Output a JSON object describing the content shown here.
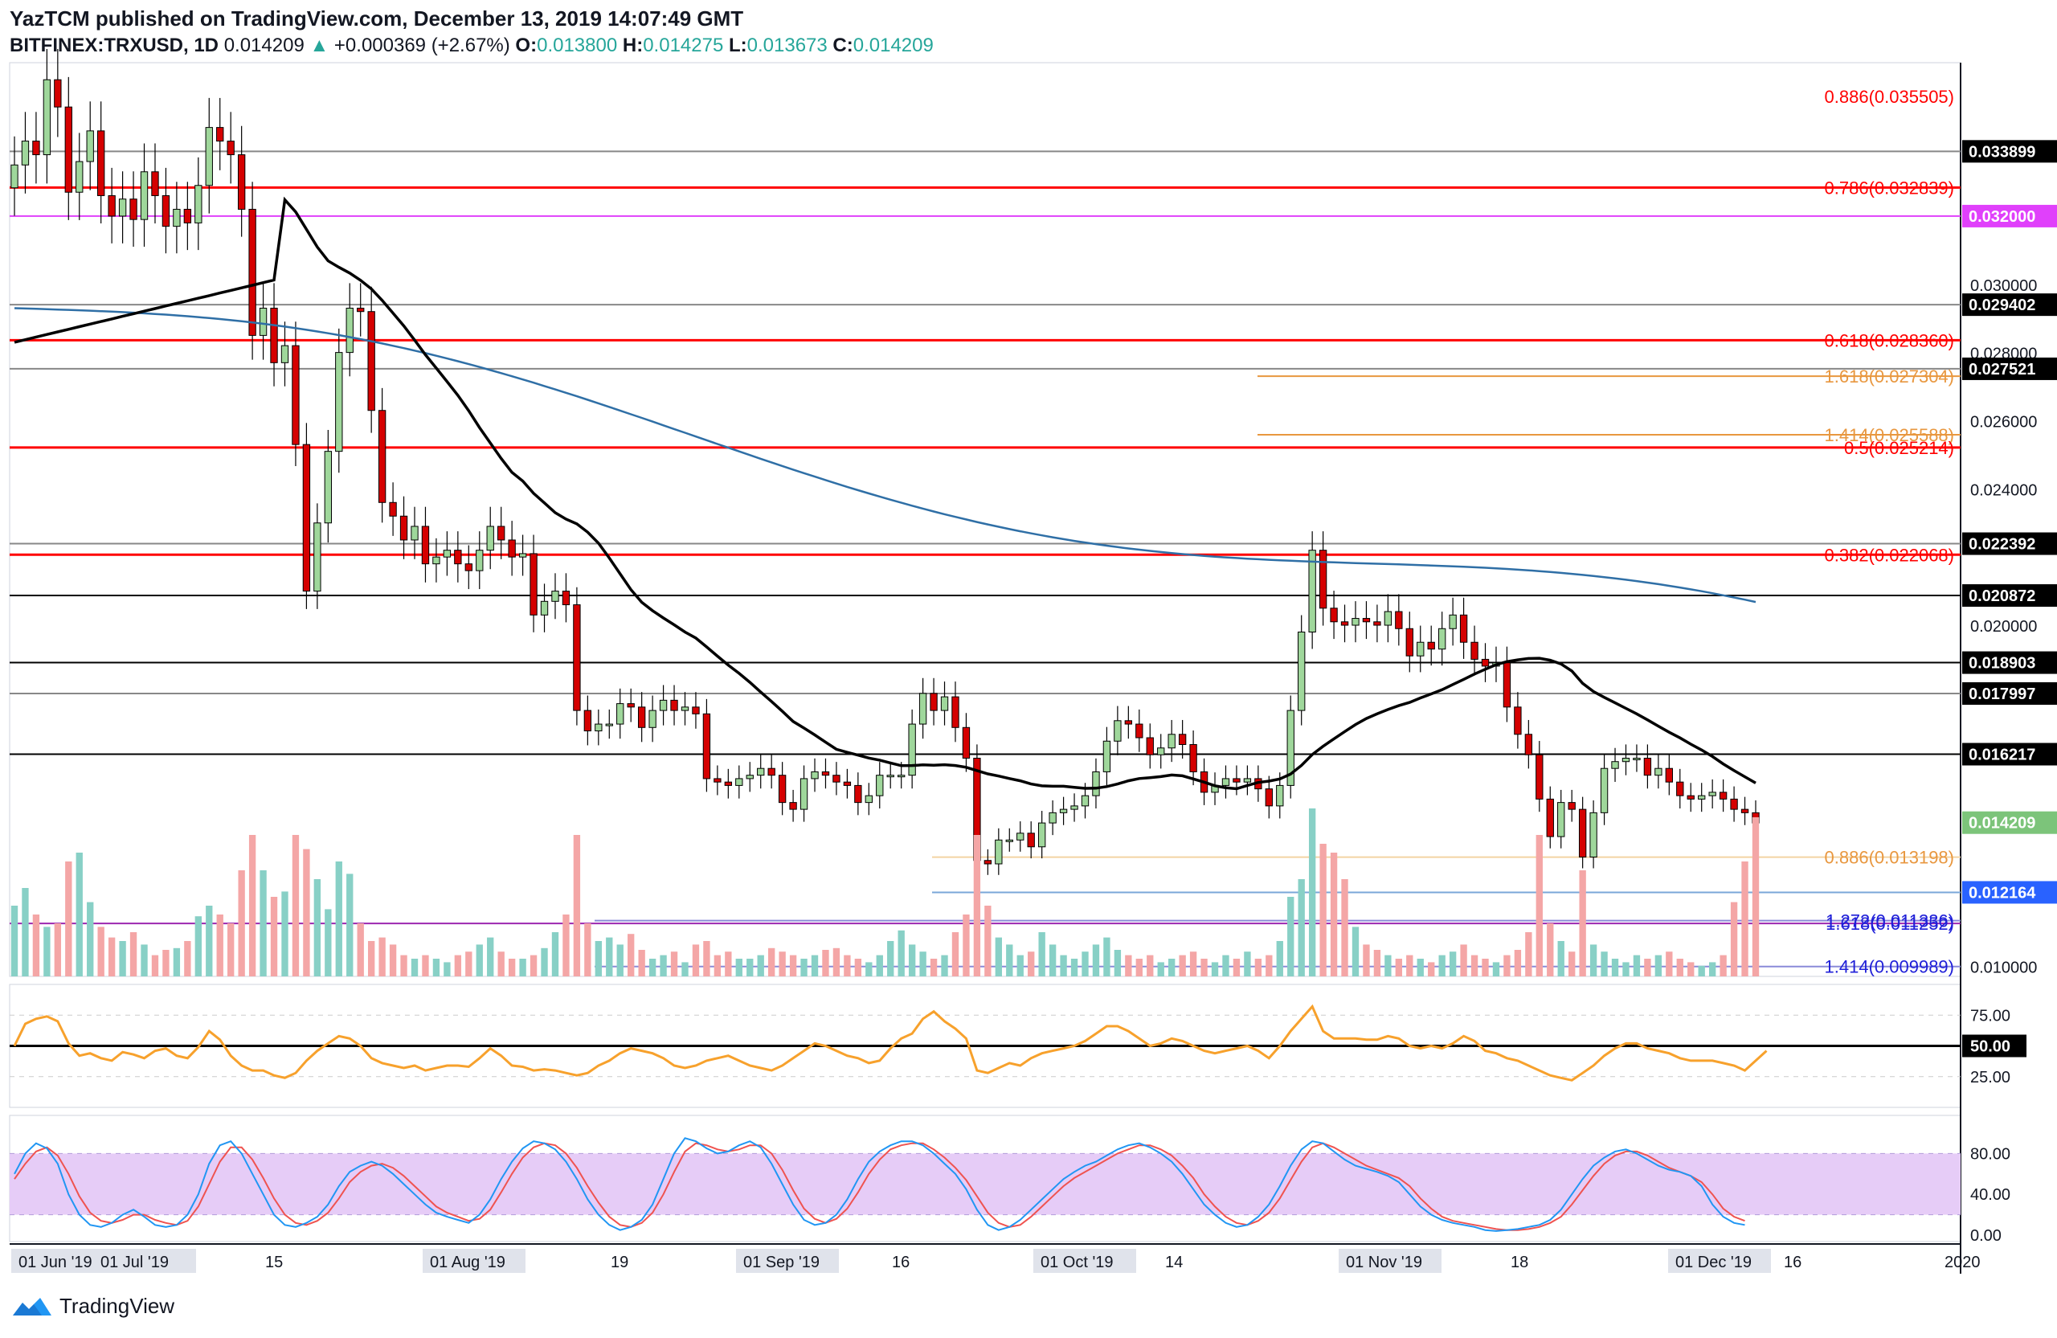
{
  "header": {
    "published": "YazTCM published on TradingView.com, December 13, 2019 14:07:49 GMT",
    "symbol": "BITFINEX:TRXUSD, 1D",
    "last": "0.014209",
    "change": "+0.000369 (+2.67%)",
    "o_label": "O:",
    "o_value": "0.013800",
    "h_label": "H:",
    "h_value": "0.014275",
    "l_label": "L:",
    "l_value": "0.013673",
    "c_label": "C:",
    "c_value": "0.014209",
    "up_icon": "triangle-up-icon"
  },
  "footer": {
    "brand": "TradingView",
    "logo_icon": "tradingview-logo-icon"
  },
  "colors": {
    "up": "#26a69a",
    "up_body": "#9fd79b",
    "down": "#d50000",
    "vol_up": "#88d0c6",
    "vol_down": "#f4a6a6",
    "ma_black": "#000000",
    "ma_blue": "#2f6fa6",
    "fib_red": "#ff0000",
    "fib_orange": "#e8973f",
    "fib_blue": "#1f1fd8",
    "rsi": "#f7a12c",
    "stoch_k": "#2196f3",
    "stoch_d": "#ef5350",
    "stoch_band": "#e6ccf7"
  },
  "chart_data": [
    {
      "type": "candlestick",
      "title": "",
      "ylim": [
        0.0097,
        0.0365
      ],
      "y_ticks": [
        "0.030000",
        "0.028000",
        "0.026000",
        "0.024000",
        "0.020000",
        "0.010000"
      ],
      "x_ticks": [
        "01 Jun '19",
        "01 Jul '19",
        "15",
        "01 Aug '19",
        "19",
        "01 Sep '19",
        "16",
        "01 Oct '19",
        "14",
        "01 Nov '19",
        "18",
        "01 Dec '19",
        "16",
        "2020"
      ],
      "price_labels": [
        {
          "text": "0.033899",
          "bg": "#000000"
        },
        {
          "text": "0.032000",
          "bg": "#e040fb"
        },
        {
          "text": "0.029402",
          "bg": "#000000"
        },
        {
          "text": "0.027521",
          "bg": "#000000"
        },
        {
          "text": "0.022392",
          "bg": "#000000"
        },
        {
          "text": "0.020872",
          "bg": "#000000"
        },
        {
          "text": "0.018903",
          "bg": "#000000"
        },
        {
          "text": "0.017997",
          "bg": "#000000"
        },
        {
          "text": "0.016217",
          "bg": "#000000"
        },
        {
          "text": "0.014209",
          "bg": "#7cc47a"
        },
        {
          "text": "0.012164",
          "bg": "#2962ff"
        }
      ],
      "horizontal_levels": [
        {
          "value": 0.033899,
          "color": "#888888"
        },
        {
          "value": 0.032839,
          "color": "#ff0000"
        },
        {
          "value": 0.032,
          "color": "#e040fb"
        },
        {
          "value": 0.029402,
          "color": "#888888"
        },
        {
          "value": 0.02836,
          "color": "#ff0000"
        },
        {
          "value": 0.027521,
          "color": "#888888"
        },
        {
          "value": 0.025214,
          "color": "#ff0000"
        },
        {
          "value": 0.022392,
          "color": "#888888"
        },
        {
          "value": 0.022068,
          "color": "#ff0000"
        },
        {
          "value": 0.020872,
          "color": "#000000"
        },
        {
          "value": 0.018903,
          "color": "#000000"
        },
        {
          "value": 0.017997,
          "color": "#888888"
        },
        {
          "value": 0.016217,
          "color": "#000000"
        },
        {
          "value": 0.011252,
          "color": "#9c27b0"
        }
      ],
      "fib_labels": [
        {
          "text": "0.886(0.035505)",
          "value": 0.035505,
          "color": "#ff0000"
        },
        {
          "text": "0.786(0.032839)",
          "value": 0.032839,
          "color": "#ff0000"
        },
        {
          "text": "0.618(0.028360)",
          "value": 0.02836,
          "color": "#ff0000"
        },
        {
          "text": "1.618(0.027304)",
          "value": 0.027304,
          "color": "#e8973f"
        },
        {
          "text": "1.414(0.025588)",
          "value": 0.025588,
          "color": "#e8973f"
        },
        {
          "text": "0.5(0.025214)",
          "value": 0.025214,
          "color": "#ff0000"
        },
        {
          "text": "0.382(0.022068)",
          "value": 0.022068,
          "color": "#ff0000"
        },
        {
          "text": "0.886(0.013198)",
          "value": 0.013198,
          "color": "#e8973f"
        },
        {
          "text": "1.618(0.011252)",
          "value": 0.011252,
          "color": "#1f1fd8"
        },
        {
          "text": "1.272(0.011336)",
          "value": 0.011336,
          "color": "#1f1fd8"
        },
        {
          "text": "1.414(0.009989)",
          "value": 0.009989,
          "color": "#1f1fd8"
        }
      ],
      "candles_close": [
        0.0335,
        0.0342,
        0.0338,
        0.036,
        0.0352,
        0.0327,
        0.0336,
        0.0345,
        0.0326,
        0.032,
        0.0325,
        0.0319,
        0.0333,
        0.0326,
        0.0317,
        0.0322,
        0.0318,
        0.0329,
        0.0346,
        0.0342,
        0.0338,
        0.0322,
        0.0285,
        0.0293,
        0.0277,
        0.0282,
        0.0253,
        0.021,
        0.023,
        0.0251,
        0.028,
        0.0293,
        0.0292,
        0.0263,
        0.0236,
        0.0232,
        0.0225,
        0.0229,
        0.0218,
        0.022,
        0.0222,
        0.0218,
        0.0216,
        0.0222,
        0.0229,
        0.0225,
        0.022,
        0.0221,
        0.0203,
        0.0207,
        0.021,
        0.0206,
        0.0175,
        0.0169,
        0.0171,
        0.0171,
        0.0177,
        0.0176,
        0.017,
        0.0175,
        0.0178,
        0.0175,
        0.0176,
        0.0174,
        0.0155,
        0.0154,
        0.0153,
        0.0155,
        0.0156,
        0.0158,
        0.0156,
        0.0148,
        0.0146,
        0.0155,
        0.0157,
        0.0156,
        0.0154,
        0.0153,
        0.0148,
        0.015,
        0.0156,
        0.0156,
        0.0156,
        0.0171,
        0.018,
        0.0175,
        0.0179,
        0.017,
        0.0161,
        0.0131,
        0.013,
        0.0137,
        0.0137,
        0.0139,
        0.0135,
        0.0142,
        0.0145,
        0.0146,
        0.0147,
        0.015,
        0.0157,
        0.0166,
        0.0172,
        0.0171,
        0.0167,
        0.0162,
        0.0164,
        0.0168,
        0.0165,
        0.0157,
        0.0151,
        0.0153,
        0.0155,
        0.0154,
        0.0155,
        0.0152,
        0.0147,
        0.0153,
        0.0175,
        0.0198,
        0.0222,
        0.0205,
        0.0201,
        0.02,
        0.0202,
        0.0201,
        0.02,
        0.0204,
        0.0199,
        0.0191,
        0.0195,
        0.0193,
        0.0199,
        0.0203,
        0.0195,
        0.019,
        0.0188,
        0.0189,
        0.0176,
        0.0168,
        0.0162,
        0.0149,
        0.0138,
        0.0148,
        0.0146,
        0.0132,
        0.0145,
        0.0158,
        0.016,
        0.0161,
        0.0161,
        0.0156,
        0.0158,
        0.0154,
        0.015,
        0.0149,
        0.015,
        0.0151,
        0.0149,
        0.0146,
        0.0145,
        0.0142
      ],
      "volume_pct": [
        0.4,
        0.5,
        0.35,
        0.28,
        0.3,
        0.65,
        0.7,
        0.42,
        0.28,
        0.22,
        0.2,
        0.25,
        0.18,
        0.12,
        0.15,
        0.16,
        0.2,
        0.34,
        0.4,
        0.35,
        0.3,
        0.6,
        0.8,
        0.6,
        0.45,
        0.48,
        0.8,
        0.72,
        0.55,
        0.38,
        0.65,
        0.58,
        0.3,
        0.2,
        0.22,
        0.18,
        0.12,
        0.1,
        0.12,
        0.1,
        0.08,
        0.12,
        0.14,
        0.18,
        0.22,
        0.14,
        0.1,
        0.1,
        0.12,
        0.16,
        0.25,
        0.35,
        0.8,
        0.3,
        0.2,
        0.22,
        0.18,
        0.24,
        0.15,
        0.1,
        0.12,
        0.14,
        0.08,
        0.18,
        0.2,
        0.12,
        0.14,
        0.1,
        0.1,
        0.12,
        0.16,
        0.14,
        0.12,
        0.1,
        0.12,
        0.15,
        0.16,
        0.12,
        0.1,
        0.08,
        0.12,
        0.2,
        0.26,
        0.18,
        0.14,
        0.1,
        0.12,
        0.25,
        0.35,
        0.8,
        0.4,
        0.22,
        0.18,
        0.12,
        0.14,
        0.25,
        0.18,
        0.12,
        0.1,
        0.14,
        0.18,
        0.22,
        0.15,
        0.12,
        0.1,
        0.12,
        0.08,
        0.1,
        0.12,
        0.14,
        0.1,
        0.08,
        0.12,
        0.1,
        0.14,
        0.1,
        0.12,
        0.2,
        0.45,
        0.55,
        0.95,
        0.75,
        0.7,
        0.55,
        0.28,
        0.18,
        0.15,
        0.12,
        0.1,
        0.12,
        0.1,
        0.08,
        0.12,
        0.14,
        0.18,
        0.12,
        0.1,
        0.08,
        0.12,
        0.15,
        0.25,
        0.8,
        0.3,
        0.2,
        0.14,
        0.6,
        0.18,
        0.14,
        0.1,
        0.08,
        0.12,
        0.1,
        0.12,
        0.14,
        0.1,
        0.08,
        0.06,
        0.08,
        0.12,
        0.42,
        0.65,
        0.9,
        0.78,
        0.35
      ]
    },
    {
      "type": "line",
      "title": "",
      "y_ticks": [
        "75.00",
        "50.00",
        "25.00"
      ],
      "ylim": [
        0,
        100
      ],
      "series": [
        {
          "values": [
            50,
            68,
            72,
            74,
            70,
            52,
            42,
            44,
            40,
            38,
            45,
            43,
            40,
            46,
            48,
            42,
            40,
            49,
            62,
            55,
            42,
            34,
            30,
            30,
            26,
            24,
            28,
            38,
            46,
            52,
            58,
            56,
            50,
            40,
            36,
            34,
            32,
            34,
            30,
            32,
            34,
            34,
            33,
            40,
            48,
            42,
            34,
            33,
            30,
            31,
            30,
            28,
            26,
            28,
            34,
            38,
            44,
            48,
            46,
            44,
            40,
            34,
            32,
            34,
            38,
            40,
            42,
            38,
            34,
            32,
            30,
            34,
            40,
            46,
            52,
            50,
            46,
            42,
            40,
            36,
            38,
            48,
            56,
            60,
            72,
            78,
            70,
            64,
            56,
            30,
            28,
            32,
            36,
            34,
            40,
            44,
            46,
            48,
            50,
            54,
            60,
            66,
            66,
            62,
            56,
            50,
            52,
            56,
            54,
            50,
            46,
            44,
            46,
            48,
            50,
            46,
            40,
            50,
            62,
            72,
            82,
            62,
            56,
            56,
            56,
            55,
            55,
            58,
            56,
            50,
            48,
            50,
            48,
            52,
            58,
            54,
            46,
            44,
            40,
            38,
            34,
            30,
            26,
            24,
            22,
            28,
            34,
            42,
            48,
            52,
            52,
            48,
            46,
            44,
            40,
            38,
            38,
            38,
            36,
            34,
            30,
            38,
            46
          ]
        }
      ]
    },
    {
      "type": "line",
      "title": "",
      "y_ticks": [
        "80.00",
        "40.00",
        "0.00"
      ],
      "ylim": [
        0,
        100
      ],
      "series": [
        {
          "values": [
            60,
            80,
            90,
            85,
            70,
            40,
            20,
            10,
            8,
            12,
            20,
            25,
            18,
            10,
            8,
            10,
            20,
            40,
            70,
            88,
            92,
            80,
            60,
            40,
            20,
            10,
            8,
            12,
            18,
            30,
            48,
            62,
            68,
            72,
            68,
            60,
            50,
            40,
            30,
            22,
            18,
            15,
            12,
            20,
            35,
            55,
            72,
            85,
            92,
            90,
            84,
            72,
            55,
            35,
            20,
            10,
            5,
            8,
            15,
            30,
            55,
            80,
            95,
            92,
            85,
            80,
            82,
            88,
            92,
            86,
            70,
            50,
            30,
            15,
            10,
            12,
            20,
            35,
            55,
            72,
            82,
            88,
            92,
            92,
            88,
            80,
            70,
            60,
            45,
            25,
            10,
            5,
            8,
            15,
            25,
            35,
            45,
            55,
            62,
            68,
            72,
            78,
            84,
            88,
            90,
            86,
            80,
            72,
            60,
            45,
            30,
            20,
            12,
            8,
            10,
            18,
            30,
            48,
            68,
            84,
            92,
            90,
            82,
            74,
            68,
            65,
            62,
            58,
            52,
            40,
            28,
            20,
            15,
            12,
            10,
            8,
            5,
            4,
            5,
            6,
            8,
            10,
            15,
            25,
            40,
            55,
            68,
            76,
            82,
            84,
            80,
            74,
            68,
            64,
            62,
            58,
            48,
            30,
            18,
            12,
            10
          ]
        },
        {
          "values": [
            55,
            70,
            82,
            86,
            78,
            60,
            38,
            22,
            14,
            12,
            15,
            20,
            20,
            15,
            12,
            10,
            14,
            28,
            50,
            72,
            86,
            86,
            74,
            56,
            36,
            20,
            12,
            10,
            14,
            22,
            36,
            52,
            62,
            68,
            70,
            66,
            58,
            48,
            38,
            28,
            22,
            18,
            14,
            16,
            25,
            42,
            60,
            76,
            86,
            90,
            88,
            80,
            66,
            48,
            32,
            18,
            10,
            8,
            12,
            22,
            40,
            62,
            82,
            90,
            88,
            84,
            82,
            84,
            88,
            88,
            80,
            64,
            44,
            26,
            16,
            12,
            16,
            26,
            42,
            60,
            74,
            84,
            88,
            90,
            90,
            84,
            76,
            66,
            54,
            38,
            22,
            12,
            8,
            10,
            18,
            28,
            38,
            48,
            56,
            62,
            68,
            74,
            80,
            84,
            88,
            88,
            84,
            78,
            68,
            56,
            40,
            28,
            18,
            12,
            10,
            14,
            22,
            36,
            54,
            72,
            86,
            90,
            86,
            80,
            74,
            68,
            64,
            60,
            56,
            48,
            36,
            26,
            18,
            14,
            12,
            10,
            8,
            6,
            5,
            5,
            6,
            8,
            12,
            18,
            30,
            44,
            58,
            70,
            78,
            82,
            82,
            78,
            72,
            66,
            62,
            58,
            52,
            40,
            26,
            18,
            14
          ]
        }
      ],
      "band": [
        20,
        80
      ]
    }
  ]
}
